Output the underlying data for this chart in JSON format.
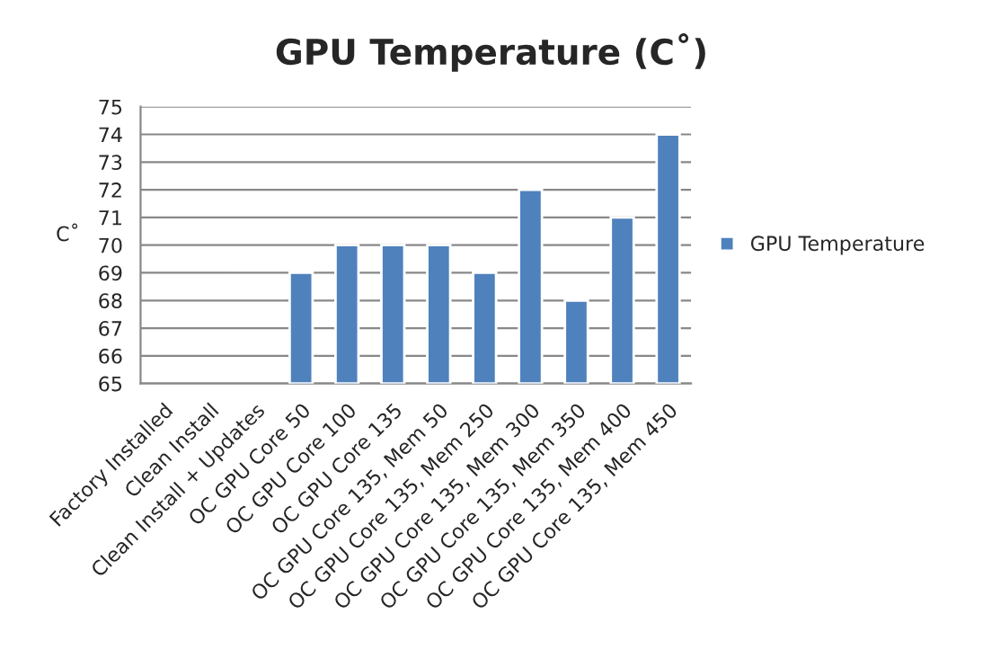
{
  "chart_data": {
    "type": "bar",
    "title": "GPU Temperature (C˚)",
    "ylabel": "C˚",
    "categories": [
      "Factory Installed",
      "Clean Install",
      "Clean Install + Updates",
      "OC GPU Core 50",
      "OC GPU Core 100",
      "OC GPU Core 135",
      "OC GPU Core 135, Mem 50",
      "OC GPU Core 135, Mem 250",
      "OC GPU Core 135, Mem 300",
      "OC GPU Core 135, Mem 350",
      "OC GPU Core 135, Mem 400",
      "OC GPU Core 135, Mem 450"
    ],
    "series": [
      {
        "name": "GPU Temperature",
        "color": "#4f81bd",
        "values": [
          null,
          null,
          null,
          69,
          70,
          70,
          70,
          69,
          72,
          68,
          71,
          74
        ]
      }
    ],
    "ylim": [
      65,
      75
    ],
    "yticks": [
      65,
      66,
      67,
      68,
      69,
      70,
      71,
      72,
      73,
      74,
      75
    ],
    "grid": "y",
    "legend": "right"
  }
}
